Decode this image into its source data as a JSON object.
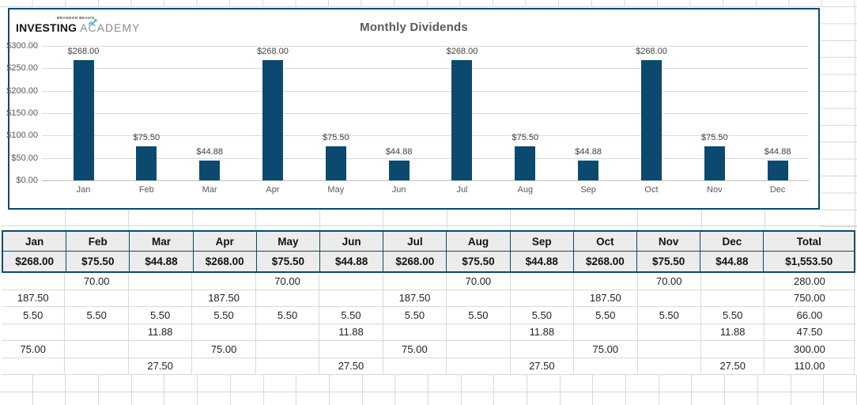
{
  "colors": {
    "accent": "#0b4a6e",
    "grid_light": "#d9d9d9",
    "header_bg": "#ececec",
    "title_gray": "#595959",
    "logo_blue": "#2bb3e8"
  },
  "logo": {
    "small": "BRANDON BEAVIS",
    "bold": "INVESTING",
    "light": "ACADEMY"
  },
  "chart_data": {
    "type": "bar",
    "title": "Monthly Dividends",
    "categories": [
      "Jan",
      "Feb",
      "Mar",
      "Apr",
      "May",
      "Jun",
      "Jul",
      "Aug",
      "Sep",
      "Oct",
      "Nov",
      "Dec"
    ],
    "values": [
      268,
      75.5,
      44.88,
      268,
      75.5,
      44.88,
      268,
      75.5,
      44.88,
      268,
      75.5,
      44.88
    ],
    "bar_labels": [
      "$268.00",
      "$75.50",
      "$44.88",
      "$268.00",
      "$75.50",
      "$44.88",
      "$268.00",
      "$75.50",
      "$44.88",
      "$268.00",
      "$75.50",
      "$44.88"
    ],
    "y_ticks": [
      "$300.00",
      "$250.00",
      "$200.00",
      "$150.00",
      "$100.00",
      "$50.00",
      "$0.00"
    ],
    "ylim": [
      0,
      300
    ],
    "xlabel": "",
    "ylabel": "",
    "grid": "horizontal",
    "legend": "none",
    "bar_color": "#0b4a6e"
  },
  "table": {
    "headers": [
      "Jan",
      "Feb",
      "Mar",
      "Apr",
      "May",
      "Jun",
      "Jul",
      "Aug",
      "Sep",
      "Oct",
      "Nov",
      "Dec",
      "Total"
    ],
    "summary_row": [
      "$268.00",
      "$75.50",
      "$44.88",
      "$268.00",
      "$75.50",
      "$44.88",
      "$268.00",
      "$75.50",
      "$44.88",
      "$268.00",
      "$75.50",
      "$44.88",
      "$1,553.50"
    ],
    "detail_rows": [
      [
        "",
        "70.00",
        "",
        "",
        "70.00",
        "",
        "",
        "70.00",
        "",
        "",
        "70.00",
        "",
        "280.00"
      ],
      [
        "187.50",
        "",
        "",
        "187.50",
        "",
        "",
        "187.50",
        "",
        "",
        "187.50",
        "",
        "",
        "750.00"
      ],
      [
        "5.50",
        "5.50",
        "5.50",
        "5.50",
        "5.50",
        "5.50",
        "5.50",
        "5.50",
        "5.50",
        "5.50",
        "5.50",
        "5.50",
        "66.00"
      ],
      [
        "",
        "",
        "11.88",
        "",
        "",
        "11.88",
        "",
        "",
        "11.88",
        "",
        "",
        "11.88",
        "47.50"
      ],
      [
        "75.00",
        "",
        "",
        "75.00",
        "",
        "",
        "75.00",
        "",
        "",
        "75.00",
        "",
        "",
        "300.00"
      ],
      [
        "",
        "",
        "27.50",
        "",
        "",
        "27.50",
        "",
        "",
        "27.50",
        "",
        "",
        "27.50",
        "110.00"
      ]
    ]
  }
}
